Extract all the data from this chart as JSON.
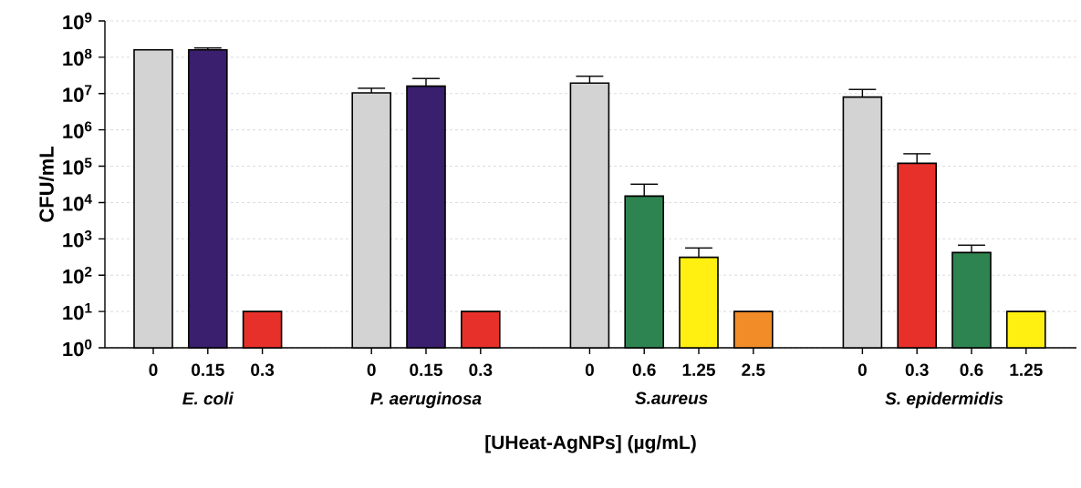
{
  "chart_data": {
    "type": "bar",
    "xlabel": "[UHeat-AgNPs] (µg/mL)",
    "ylabel": "CFU/mL",
    "categories": [
      "0",
      "0.15",
      "0.3",
      null,
      "0",
      "0.15",
      "0.3",
      null,
      "0",
      "0.6",
      "1.25",
      "2.5",
      null,
      "0",
      "0.3",
      "0.6",
      "1.25"
    ],
    "values": [
      160000000,
      160000000,
      10,
      null,
      10500000,
      16000000,
      10,
      null,
      19500000,
      15000,
      310,
      10,
      null,
      8000000,
      120000,
      420,
      10
    ],
    "errors": [
      null,
      [
        160000000,
        180000000
      ],
      null,
      null,
      [
        10500000,
        14000000
      ],
      [
        16000000,
        26000000
      ],
      null,
      null,
      [
        19500000,
        30000000
      ],
      [
        15000,
        32000
      ],
      [
        310,
        560
      ],
      null,
      null,
      [
        8000000,
        13000000
      ],
      [
        120000,
        220000
      ],
      [
        420,
        670
      ],
      null
    ],
    "colors": [
      "#d3d3d3",
      "#3a1f6e",
      "#e8302a",
      null,
      "#d3d3d3",
      "#3a1f6e",
      "#e8302a",
      null,
      "#d3d3d3",
      "#2e8450",
      "#fff011",
      "#f28c28",
      null,
      "#d3d3d3",
      "#e8302a",
      "#2e8450",
      "#fff011"
    ],
    "annotations": [
      "E. coli",
      "P. aeruginosa",
      "S.aureus",
      "S. epidermidis"
    ],
    "log": "y",
    "grid": "y",
    "ylim": [
      1,
      1000000000
    ],
    "yticks": [
      {
        "value": 1,
        "label": "10$^{0}$"
      },
      {
        "value": 10,
        "label": "10$^{1}$"
      },
      {
        "value": 100,
        "label": "10$^{2}$"
      },
      {
        "value": 1000,
        "label": "10$^{3}$"
      },
      {
        "value": 10000,
        "label": "10$^{4}$"
      },
      {
        "value": 100000,
        "label": "10$^{5}$"
      },
      {
        "value": 1000000,
        "label": "10$^{6}$"
      },
      {
        "value": 10000000,
        "label": "10$^{7}$"
      },
      {
        "value": 100000000,
        "label": "10$^{8}$"
      },
      {
        "value": 1000000000,
        "label": "10$^{9}$"
      }
    ]
  }
}
